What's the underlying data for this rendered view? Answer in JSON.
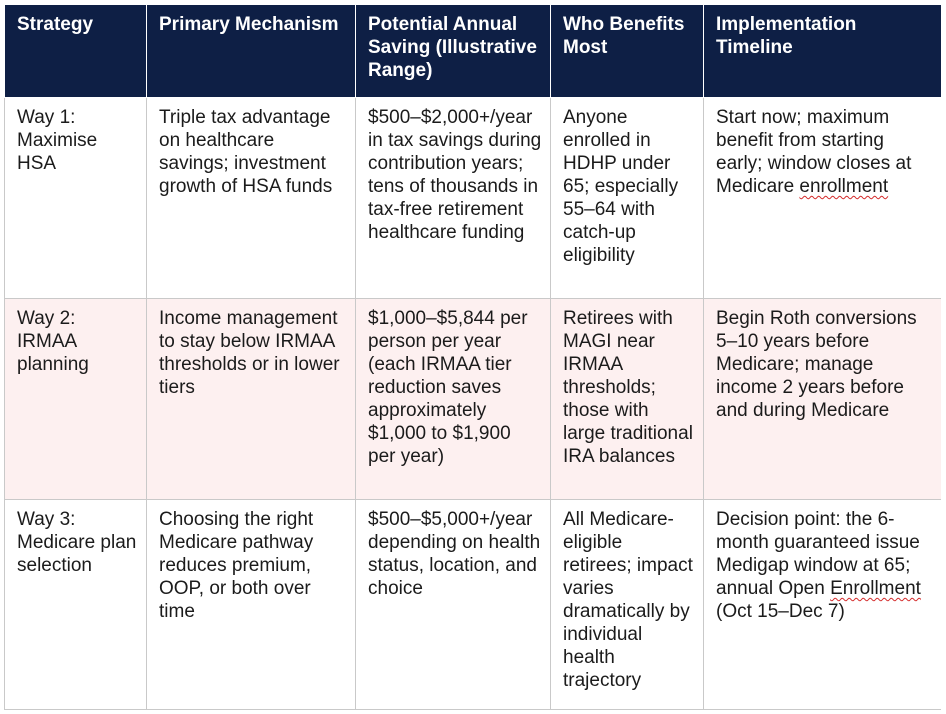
{
  "table": {
    "headers": [
      "Strategy",
      "Primary Mechanism",
      "Potential Annual Saving (Illustrative Range)",
      "Who Benefits Most",
      "Implementation Timeline"
    ],
    "rows": [
      {
        "strategy": "Way 1: Maximise HSA",
        "mechanism": "Triple tax advantage on healthcare savings; investment growth of HSA funds",
        "saving": "$500–$2,000+/year in tax savings during contribution years; tens of thousands in tax-free retirement healthcare funding",
        "benefits": "Anyone enrolled in HDHP under 65; especially 55–64 with catch-up eligibility",
        "timeline_before": "Start now; maximum benefit from starting early; window closes at Medicare ",
        "timeline_flagged": "enrollment",
        "timeline_after": ""
      },
      {
        "strategy": "Way 2: IRMAA planning",
        "mechanism": "Income management to stay below IRMAA thresholds or in lower tiers",
        "saving": "$1,000–$5,844 per person per year (each IRMAA tier reduction saves approximately $1,000 to $1,900 per year)",
        "benefits": "Retirees with MAGI near IRMAA thresholds; those with large traditional IRA balances",
        "timeline_before": "Begin Roth conversions 5–10 years before Medicare; manage income 2 years before and during Medicare",
        "timeline_flagged": "",
        "timeline_after": ""
      },
      {
        "strategy": "Way 3: Medicare plan selection",
        "mechanism": "Choosing the right Medicare pathway reduces premium, OOP, or both over time",
        "saving": "$500–$5,000+/year depending on health status, location, and choice",
        "benefits": "All Medicare-eligible retirees; impact varies dramatically by individual health trajectory",
        "timeline_before": "Decision point: the 6-month guaranteed issue Medigap window at 65; annual Open ",
        "timeline_flagged": "Enrollment",
        "timeline_after": " (Oct 15–Dec 7)"
      }
    ]
  }
}
